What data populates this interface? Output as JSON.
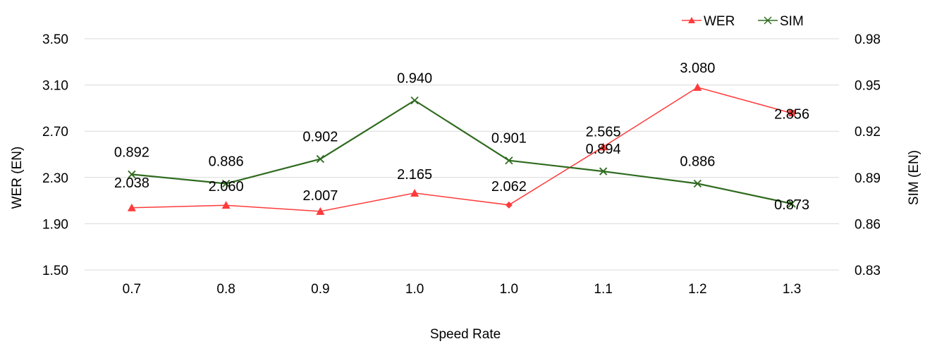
{
  "chart_data": {
    "type": "line",
    "categories": [
      "0.7",
      "0.8",
      "0.9",
      "1.0",
      "1.0",
      "1.1",
      "1.2",
      "1.3"
    ],
    "xlabel": "Speed Rate",
    "ylabel_left": "WER (EN)",
    "ylabel_right": "SIM (EN)",
    "ylim_left": [
      1.5,
      3.5
    ],
    "ylim_right": [
      0.83,
      0.98
    ],
    "yticks_left": [
      "1.50",
      "1.90",
      "2.30",
      "2.70",
      "3.10",
      "3.50"
    ],
    "yticks_right": [
      "0.83",
      "0.86",
      "0.89",
      "0.92",
      "0.95",
      "0.98"
    ],
    "grid": true,
    "legend_position": "top-right",
    "series": [
      {
        "name": "WER",
        "axis": "left",
        "color": "#ff3b3b",
        "marker": "triangle",
        "values": [
          2.038,
          2.06,
          2.007,
          2.165,
          2.062,
          2.565,
          3.08,
          2.856
        ],
        "labels": [
          "2.038",
          "2.060",
          "2.007",
          "2.165",
          "2.062",
          "2.565",
          "3.080",
          "2.856"
        ]
      },
      {
        "name": "SIM",
        "axis": "right",
        "color": "#2f6b1f",
        "marker": "x",
        "values": [
          0.892,
          0.886,
          0.902,
          0.94,
          0.901,
          0.894,
          0.886,
          0.873
        ],
        "labels": [
          "0.892",
          "0.886",
          "0.902",
          "0.940",
          "0.901",
          "0.894",
          "0.886",
          "0.873"
        ]
      }
    ]
  }
}
